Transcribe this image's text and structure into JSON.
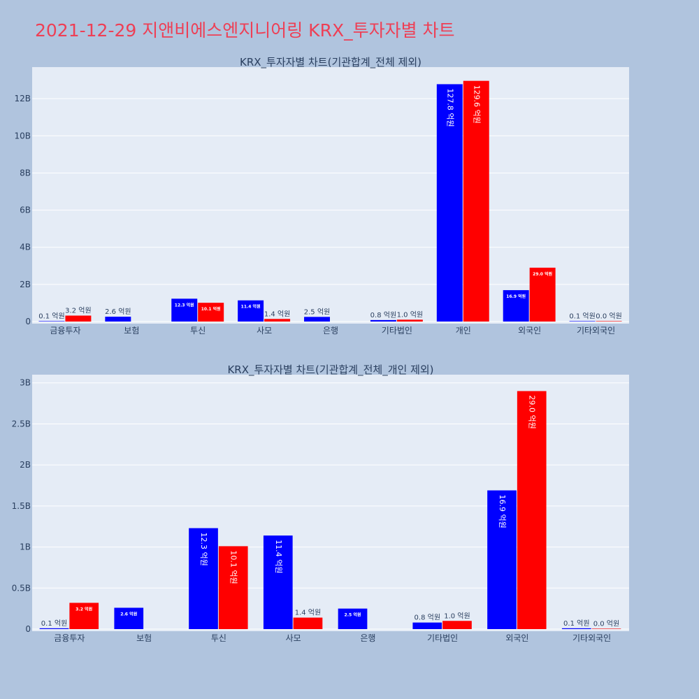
{
  "page_title": "2021-12-29 지앤비에스엔지니어링 KRX_투자자별 차트",
  "colors": {
    "background": "#b0c4de",
    "plot_bg": "#e5ecf6",
    "grid": "#ffffff",
    "buy": "#0000ff",
    "sell": "#ff0000",
    "title": "#ee3f55",
    "text": "#2a3f5f"
  },
  "chart_data": [
    {
      "type": "bar",
      "title": "KRX_투자자별 차트(기관합계_전체 제외)",
      "xlabel": "",
      "ylabel": "",
      "ylim": [
        0,
        13.7
      ],
      "y_unit": "B",
      "y_ticks": [
        0,
        2,
        4,
        6,
        8,
        10,
        12
      ],
      "y_tick_labels": [
        "0",
        "2B",
        "4B",
        "6B",
        "8B",
        "10B",
        "12B"
      ],
      "grid": true,
      "categories": [
        "금융투자",
        "보험",
        "투신",
        "사모",
        "은행",
        "기타법인",
        "개인",
        "외국인",
        "기타외국인"
      ],
      "series": [
        {
          "color": "#0000ff",
          "values": [
            0.01,
            0.26,
            1.23,
            1.14,
            0.25,
            0.08,
            12.78,
            1.69,
            0.01
          ],
          "labels": [
            "0.1 억원",
            "2.6 억원",
            "12.3 억원",
            "11.4 억원",
            "2.5 억원",
            "0.8 억원",
            "127.8 억원",
            "16.9 억원",
            "0.1 억원"
          ]
        },
        {
          "color": "#ff0000",
          "values": [
            0.32,
            null,
            1.01,
            0.14,
            null,
            0.1,
            12.96,
            2.9,
            0.0
          ],
          "labels": [
            "3.2 억원",
            "",
            "10.1 억원",
            "1.4 억원",
            "",
            "1.0 억원",
            "129.6 억원",
            "29.0 억원",
            "0.0 억원"
          ]
        }
      ]
    },
    {
      "type": "bar",
      "title": "KRX_투자자별 차트(기관합계_전체_개인 제외)",
      "xlabel": "",
      "ylabel": "",
      "ylim": [
        0,
        3.1
      ],
      "y_unit": "B",
      "y_ticks": [
        0,
        0.5,
        1,
        1.5,
        2,
        2.5,
        3
      ],
      "y_tick_labels": [
        "0",
        "0.5B",
        "1B",
        "1.5B",
        "2B",
        "2.5B",
        "3B"
      ],
      "grid": true,
      "categories": [
        "금융투자",
        "보험",
        "투신",
        "사모",
        "은행",
        "기타법인",
        "외국인",
        "기타외국인"
      ],
      "series": [
        {
          "color": "#0000ff",
          "values": [
            0.01,
            0.26,
            1.23,
            1.14,
            0.25,
            0.08,
            1.69,
            0.01
          ],
          "labels": [
            "0.1 억원",
            "2.6 억원",
            "12.3 억원",
            "11.4 억원",
            "2.5 억원",
            "0.8 억원",
            "16.9 억원",
            "0.1 억원"
          ]
        },
        {
          "color": "#ff0000",
          "values": [
            0.32,
            null,
            1.01,
            0.14,
            null,
            0.1,
            2.9,
            0.0
          ],
          "labels": [
            "3.2 억원",
            "",
            "10.1 억원",
            "1.4 억원",
            "",
            "1.0 억원",
            "29.0 억원",
            "0.0 억원"
          ]
        }
      ]
    }
  ]
}
